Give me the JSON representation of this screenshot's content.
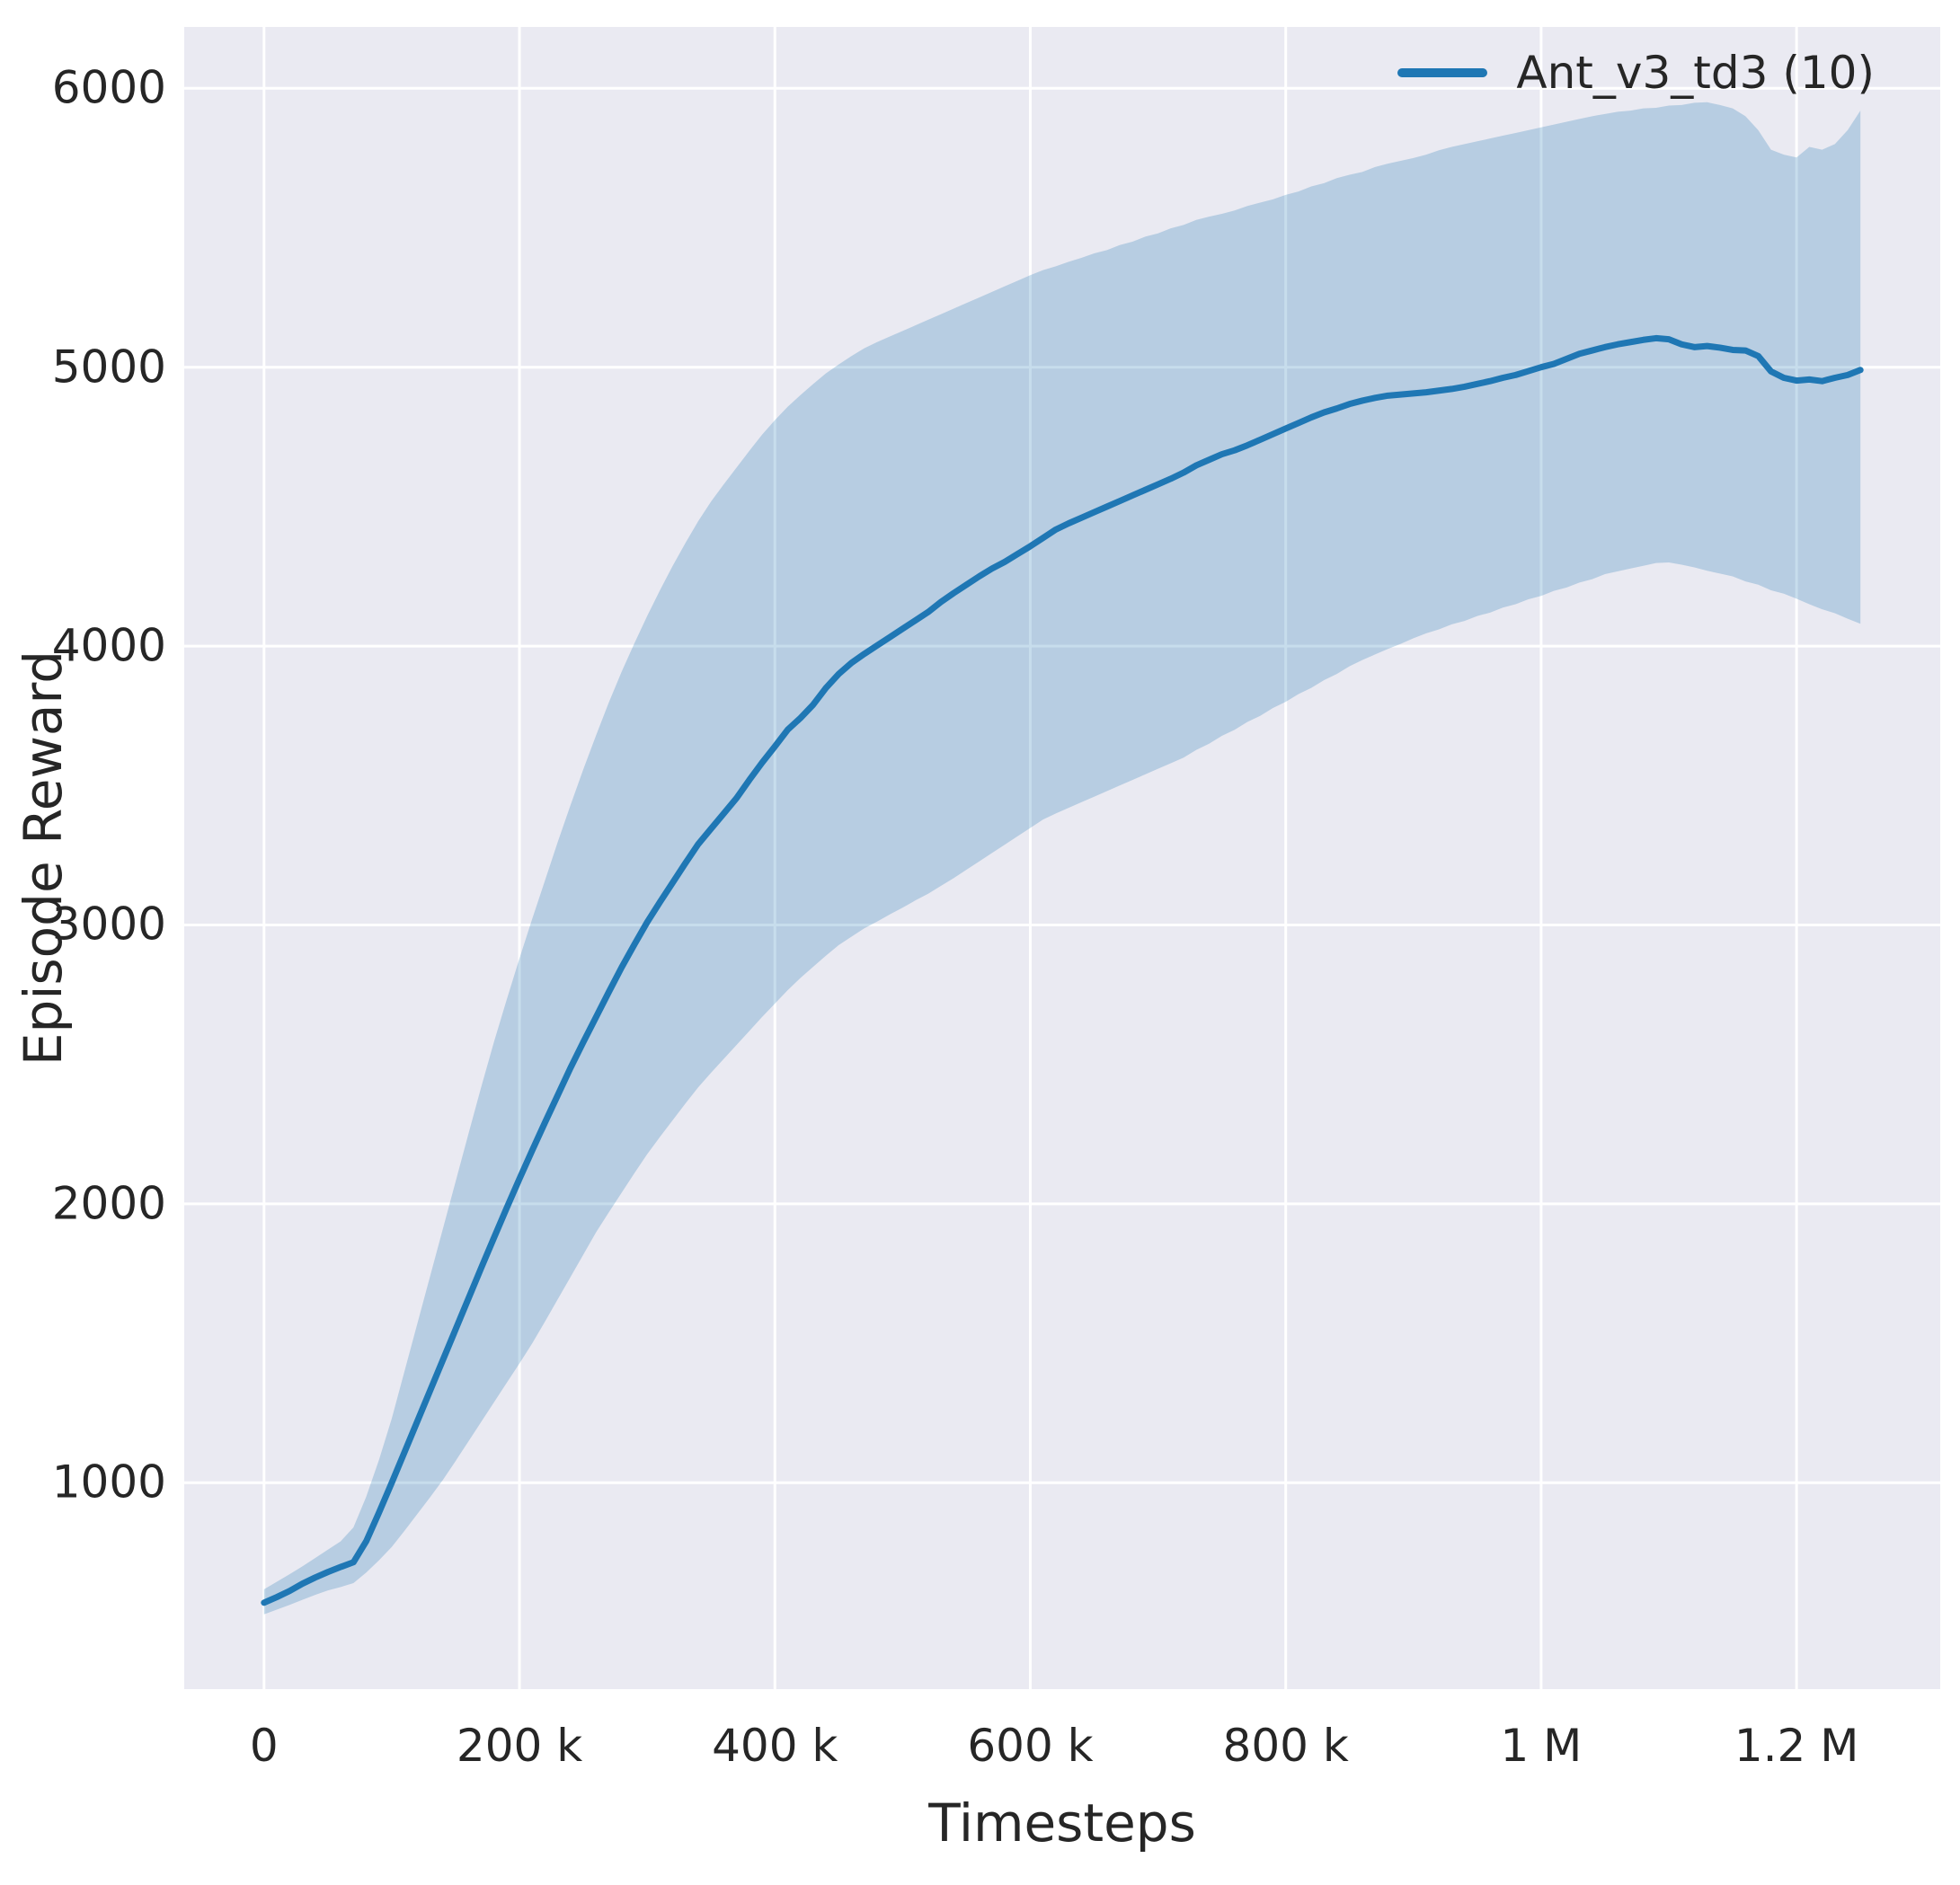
{
  "figure": {
    "background": "#ffffff",
    "plot_background": "#eaeaf2",
    "grid_color": "#ffffff",
    "text_color": "#262626"
  },
  "chart_data": {
    "type": "line",
    "title": "",
    "xlabel": "Timesteps",
    "ylabel": "Episode Reward",
    "grid": true,
    "legend": {
      "position": "upper right",
      "entries": [
        {
          "label": "Ant_v3_td3 (10)",
          "color": "#1f77b4"
        }
      ]
    },
    "xlim": [
      -62500,
      1312500
    ],
    "ylim": [
      260,
      6220
    ],
    "xticks": {
      "values": [
        0,
        200000,
        400000,
        600000,
        800000,
        1000000,
        1200000
      ],
      "labels": [
        "0",
        "200 k",
        "400 k",
        "600 k",
        "800 k",
        "1 M",
        "1.2 M"
      ]
    },
    "yticks": {
      "values": [
        1000,
        2000,
        3000,
        4000,
        5000,
        6000
      ],
      "labels": [
        "1000",
        "2000",
        "3000",
        "4000",
        "5000",
        "6000"
      ]
    },
    "x": [
      0,
      10000,
      20000,
      30000,
      40000,
      50000,
      60000,
      70000,
      80000,
      90000,
      100000,
      110000,
      120000,
      130000,
      140000,
      150000,
      160000,
      170000,
      180000,
      190000,
      200000,
      210000,
      220000,
      230000,
      240000,
      250000,
      260000,
      270000,
      280000,
      290000,
      300000,
      310000,
      320000,
      330000,
      340000,
      350000,
      360000,
      370000,
      380000,
      390000,
      400000,
      410000,
      420000,
      430000,
      440000,
      450000,
      460000,
      470000,
      480000,
      490000,
      500000,
      510000,
      520000,
      530000,
      540000,
      550000,
      560000,
      570000,
      580000,
      590000,
      600000,
      610000,
      620000,
      630000,
      640000,
      650000,
      660000,
      670000,
      680000,
      690000,
      700000,
      710000,
      720000,
      730000,
      740000,
      750000,
      760000,
      770000,
      780000,
      790000,
      800000,
      810000,
      820000,
      830000,
      840000,
      850000,
      860000,
      870000,
      880000,
      890000,
      900000,
      910000,
      920000,
      930000,
      940000,
      950000,
      960000,
      970000,
      980000,
      990000,
      1000000,
      1010000,
      1020000,
      1030000,
      1040000,
      1050000,
      1060000,
      1070000,
      1080000,
      1090000,
      1100000,
      1110000,
      1120000,
      1130000,
      1140000,
      1150000,
      1160000,
      1170000,
      1180000,
      1190000,
      1200000,
      1210000,
      1220000,
      1230000,
      1240000,
      1250000
    ],
    "series": [
      {
        "name": "Ant_v3_td3 (10)",
        "color": "#1f77b4",
        "line_width": 7,
        "band_opacity": 0.25,
        "mean": [
          570,
          590,
          612,
          638,
          660,
          680,
          698,
          715,
          790,
          893,
          1000,
          1110,
          1220,
          1330,
          1440,
          1550,
          1660,
          1770,
          1878,
          1985,
          2090,
          2192,
          2292,
          2390,
          2488,
          2580,
          2670,
          2760,
          2848,
          2930,
          3010,
          3082,
          3152,
          3222,
          3290,
          3345,
          3400,
          3455,
          3520,
          3582,
          3640,
          3700,
          3742,
          3790,
          3850,
          3900,
          3940,
          3972,
          4002,
          4032,
          4062,
          4092,
          4122,
          4158,
          4190,
          4220,
          4250,
          4278,
          4302,
          4330,
          4358,
          4388,
          4418,
          4440,
          4460,
          4480,
          4500,
          4520,
          4540,
          4560,
          4580,
          4600,
          4622,
          4648,
          4668,
          4688,
          4702,
          4720,
          4740,
          4760,
          4780,
          4800,
          4820,
          4838,
          4852,
          4868,
          4880,
          4890,
          4898,
          4902,
          4906,
          4910,
          4916,
          4922,
          4930,
          4940,
          4950,
          4962,
          4972,
          4986,
          5000,
          5012,
          5030,
          5048,
          5060,
          5072,
          5082,
          5090,
          5098,
          5104,
          5100,
          5082,
          5072,
          5076,
          5070,
          5062,
          5060,
          5040,
          4985,
          4962,
          4952,
          4956,
          4950,
          4962,
          4972,
          4990
        ],
        "band_lower": [
          528,
          545,
          562,
          580,
          598,
          614,
          626,
          640,
          678,
          722,
          770,
          828,
          888,
          948,
          1010,
          1078,
          1148,
          1218,
          1288,
          1358,
          1428,
          1500,
          1578,
          1658,
          1738,
          1818,
          1898,
          1970,
          2040,
          2110,
          2178,
          2240,
          2300,
          2360,
          2418,
          2470,
          2520,
          2570,
          2620,
          2670,
          2718,
          2766,
          2810,
          2850,
          2890,
          2928,
          2958,
          2988,
          3012,
          3038,
          3062,
          3088,
          3112,
          3140,
          3168,
          3198,
          3228,
          3258,
          3288,
          3318,
          3348,
          3378,
          3400,
          3420,
          3440,
          3460,
          3480,
          3500,
          3520,
          3540,
          3560,
          3580,
          3600,
          3628,
          3650,
          3678,
          3700,
          3728,
          3750,
          3778,
          3800,
          3828,
          3850,
          3878,
          3900,
          3928,
          3950,
          3970,
          3990,
          4008,
          4028,
          4046,
          4060,
          4078,
          4090,
          4108,
          4120,
          4138,
          4150,
          4168,
          4180,
          4198,
          4210,
          4228,
          4240,
          4258,
          4268,
          4278,
          4288,
          4298,
          4300,
          4292,
          4282,
          4270,
          4260,
          4250,
          4232,
          4220,
          4200,
          4188,
          4170,
          4150,
          4132,
          4118,
          4098,
          4080
        ],
        "band_upper": [
          618,
          645,
          672,
          700,
          730,
          760,
          790,
          840,
          950,
          1082,
          1230,
          1400,
          1570,
          1740,
          1910,
          2080,
          2250,
          2418,
          2580,
          2732,
          2880,
          3022,
          3160,
          3298,
          3430,
          3558,
          3680,
          3798,
          3908,
          4010,
          4108,
          4200,
          4288,
          4370,
          4448,
          4518,
          4580,
          4640,
          4700,
          4758,
          4810,
          4858,
          4900,
          4940,
          4978,
          5010,
          5040,
          5068,
          5090,
          5110,
          5130,
          5150,
          5170,
          5190,
          5210,
          5230,
          5250,
          5270,
          5290,
          5310,
          5330,
          5348,
          5362,
          5378,
          5392,
          5408,
          5420,
          5438,
          5450,
          5468,
          5480,
          5498,
          5510,
          5528,
          5540,
          5550,
          5562,
          5578,
          5590,
          5602,
          5618,
          5630,
          5648,
          5660,
          5678,
          5690,
          5700,
          5718,
          5730,
          5740,
          5750,
          5762,
          5778,
          5790,
          5800,
          5810,
          5820,
          5830,
          5840,
          5850,
          5860,
          5870,
          5880,
          5890,
          5900,
          5908,
          5916,
          5920,
          5928,
          5930,
          5938,
          5940,
          5948,
          5950,
          5940,
          5928,
          5900,
          5850,
          5780,
          5762,
          5752,
          5790,
          5780,
          5800,
          5850,
          5920
        ]
      }
    ]
  }
}
